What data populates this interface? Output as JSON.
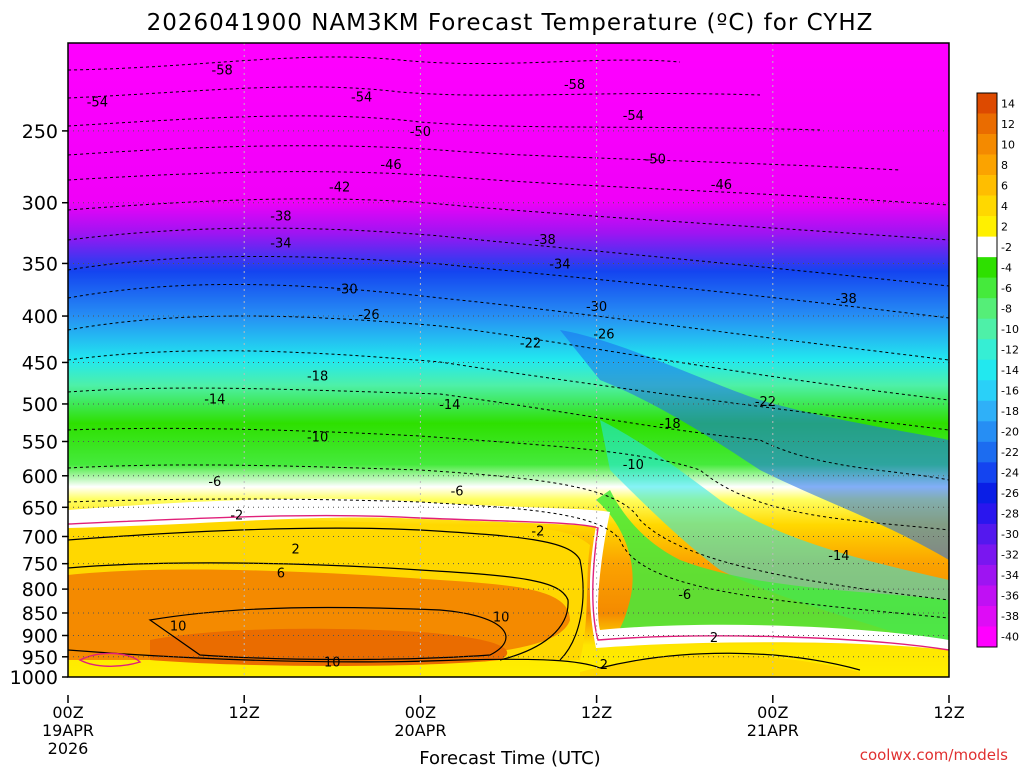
{
  "chart_data": {
    "type": "heatmap",
    "title": "2026041900 NAM3KM Forecast Temperature (ºC) for CYHZ",
    "xlabel": "Forecast Time (UTC)",
    "ylabel": "",
    "credit": "coolwx.com/models",
    "x_ticks": [
      {
        "hour": 0,
        "label": "00Z",
        "sub1": "19APR",
        "sub2": "2026"
      },
      {
        "hour": 12,
        "label": "12Z",
        "sub1": "",
        "sub2": ""
      },
      {
        "hour": 24,
        "label": "00Z",
        "sub1": "20APR",
        "sub2": ""
      },
      {
        "hour": 36,
        "label": "12Z",
        "sub1": "",
        "sub2": ""
      },
      {
        "hour": 48,
        "label": "00Z",
        "sub1": "21APR",
        "sub2": ""
      },
      {
        "hour": 60,
        "label": "12Z",
        "sub1": "",
        "sub2": ""
      }
    ],
    "xlim": [
      0,
      60
    ],
    "y_ticks": [
      "250",
      "300",
      "350",
      "400",
      "450",
      "500",
      "550",
      "600",
      "650",
      "700",
      "750",
      "800",
      "850",
      "900",
      "950",
      "1000"
    ],
    "ylim": [
      200,
      1000
    ],
    "y_scale": "log",
    "colorbar": {
      "labels": [
        "14",
        "12",
        "10",
        "8",
        "6",
        "4",
        "2",
        "-2",
        "-4",
        "-6",
        "-8",
        "-10",
        "-12",
        "-14",
        "-16",
        "-18",
        "-20",
        "-22",
        "-24",
        "-26",
        "-28",
        "-30",
        "-32",
        "-34",
        "-36",
        "-38",
        "-40"
      ],
      "colors": [
        "#dd4a00",
        "#ea6c00",
        "#f48a00",
        "#fba300",
        "#ffbe00",
        "#ffd800",
        "#fff000",
        "#ffffff",
        "#2ee000",
        "#45ea3c",
        "#55ee78",
        "#4ef0a8",
        "#36eed4",
        "#22e8ef",
        "#2ad0f8",
        "#2fb0f8",
        "#268ef4",
        "#1c6cf0",
        "#1444f0",
        "#0a1ee6",
        "#2a16ee",
        "#5418ee",
        "#7a16f0",
        "#9e14f2",
        "#c010f4",
        "#de0cf6",
        "#ff00ff"
      ]
    },
    "contour_labels": [
      {
        "text": "-58",
        "hour": 10.5,
        "p": 214
      },
      {
        "text": "-58",
        "hour": 34.5,
        "p": 222
      },
      {
        "text": "-54",
        "hour": 2,
        "p": 232
      },
      {
        "text": "-54",
        "hour": 20,
        "p": 229
      },
      {
        "text": "-54",
        "hour": 38.5,
        "p": 240
      },
      {
        "text": "-50",
        "hour": 24,
        "p": 250
      },
      {
        "text": "-50",
        "hour": 40,
        "p": 268
      },
      {
        "text": "-46",
        "hour": 22,
        "p": 272
      },
      {
        "text": "-46",
        "hour": 44.5,
        "p": 286
      },
      {
        "text": "-42",
        "hour": 18.5,
        "p": 288
      },
      {
        "text": "-38",
        "hour": 14.5,
        "p": 310
      },
      {
        "text": "-38",
        "hour": 32.5,
        "p": 329
      },
      {
        "text": "-38",
        "hour": 53,
        "p": 382
      },
      {
        "text": "-34",
        "hour": 14.5,
        "p": 332
      },
      {
        "text": "-34",
        "hour": 33.5,
        "p": 350
      },
      {
        "text": "-30",
        "hour": 19,
        "p": 373
      },
      {
        "text": "-30",
        "hour": 36,
        "p": 390
      },
      {
        "text": "-26",
        "hour": 20.5,
        "p": 398
      },
      {
        "text": "-26",
        "hour": 36.5,
        "p": 418
      },
      {
        "text": "-22",
        "hour": 31.5,
        "p": 428
      },
      {
        "text": "-22",
        "hour": 47.5,
        "p": 496
      },
      {
        "text": "-18",
        "hour": 17,
        "p": 465
      },
      {
        "text": "-18",
        "hour": 41,
        "p": 525
      },
      {
        "text": "-14",
        "hour": 10,
        "p": 493
      },
      {
        "text": "-14",
        "hour": 26,
        "p": 500
      },
      {
        "text": "-14",
        "hour": 52.5,
        "p": 734
      },
      {
        "text": "-10",
        "hour": 17,
        "p": 543
      },
      {
        "text": "-10",
        "hour": 38.5,
        "p": 582
      },
      {
        "text": "-6",
        "hour": 10,
        "p": 608
      },
      {
        "text": "-6",
        "hour": 26.5,
        "p": 623
      },
      {
        "text": "-6",
        "hour": 42,
        "p": 810
      },
      {
        "text": "-2",
        "hour": 11.5,
        "p": 662
      },
      {
        "text": "-2",
        "hour": 32,
        "p": 689
      },
      {
        "text": "2",
        "hour": 15.5,
        "p": 722
      },
      {
        "text": "2",
        "hour": 44,
        "p": 904
      },
      {
        "text": "2",
        "hour": 36.5,
        "p": 968
      },
      {
        "text": "6",
        "hour": 14.5,
        "p": 767
      },
      {
        "text": "10",
        "hour": 7.5,
        "p": 878
      },
      {
        "text": "10",
        "hour": 29.5,
        "p": 858
      },
      {
        "text": "10",
        "hour": 18,
        "p": 962
      }
    ]
  }
}
